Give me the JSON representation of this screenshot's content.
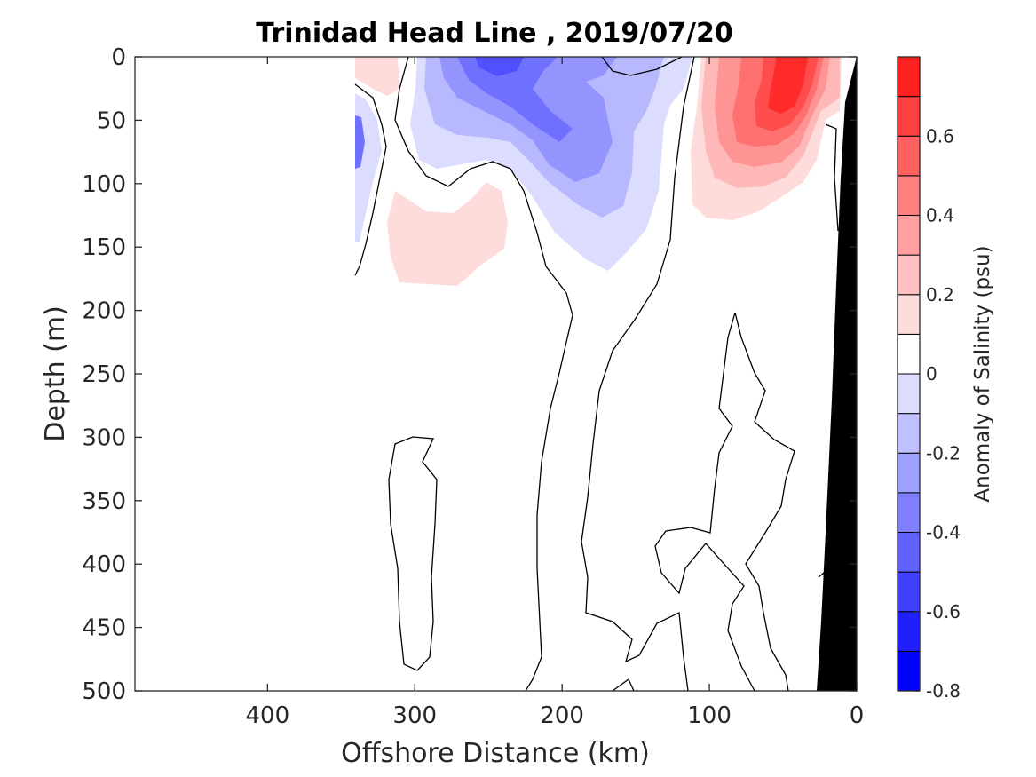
{
  "chart_data": {
    "type": "contour",
    "title": "Trinidad Head Line , 2019/07/20",
    "xlabel": "Offshore Distance (km)",
    "ylabel": "Depth (m)",
    "x_reversed": true,
    "xlim": [
      0,
      490
    ],
    "ylim": [
      0,
      500
    ],
    "y_reversed": true,
    "x_ticks": [
      "400",
      "300",
      "200",
      "100",
      "0"
    ],
    "x_tick_values": [
      400,
      300,
      200,
      100,
      0
    ],
    "y_ticks": [
      "0",
      "50",
      "100",
      "150",
      "200",
      "250",
      "300",
      "350",
      "400",
      "450",
      "500"
    ],
    "y_tick_values": [
      0,
      50,
      100,
      150,
      200,
      250,
      300,
      350,
      400,
      450,
      500
    ],
    "colorbar": {
      "label": "Anomaly of Salinity (psu)",
      "range": [
        -0.8,
        0.8
      ],
      "step": 0.1,
      "tick_labels": [
        "-0.8",
        "-0.6",
        "-0.4",
        "-0.2",
        "0",
        "0.2",
        "0.4",
        "0.6"
      ],
      "tick_values": [
        -0.8,
        -0.6,
        -0.4,
        -0.2,
        0,
        0.2,
        0.4,
        0.6
      ],
      "colors": [
        "#0000ff",
        "#2020ff",
        "#4040ff",
        "#6060ff",
        "#8080ff",
        "#a0a0ff",
        "#c0c0ff",
        "#dcdcff",
        "#ffffff",
        "#ffdcdc",
        "#ffc0c0",
        "#ffa0a0",
        "#ff8080",
        "#ff6060",
        "#ff4040",
        "#ff2020",
        "#ff0000"
      ]
    },
    "colors": {
      "neg_1": "#dcdcff",
      "neg_2": "#b8b8ff",
      "neg_3": "#9494ff",
      "neg_4": "#7070ff",
      "neg_5": "#5050ff",
      "pos_1": "#ffdcdc",
      "pos_2": "#ffb8b8",
      "pos_3": "#ff9494",
      "pos_4": "#ff7070",
      "pos_5": "#ff4c4c",
      "pos_6": "#ff2a2a",
      "bathymetry": "#000000"
    }
  }
}
